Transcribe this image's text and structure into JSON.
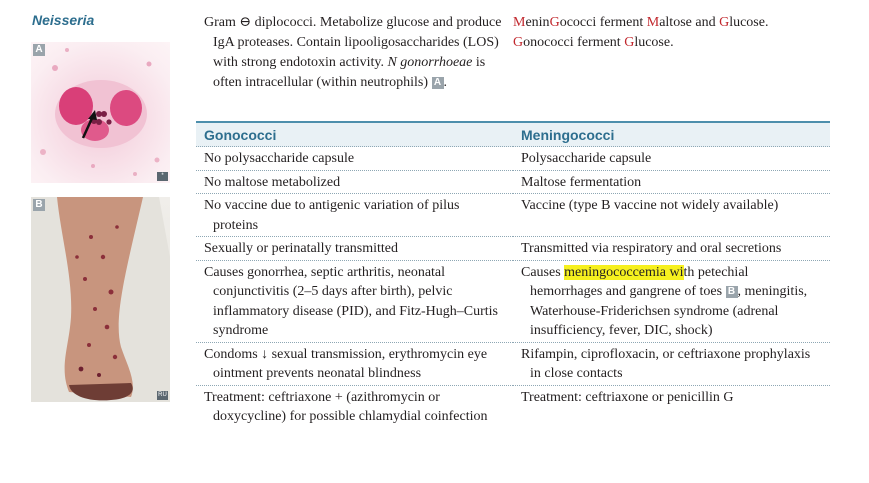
{
  "section_title": "Neisseria",
  "images": [
    {
      "label": "A",
      "corner": "*"
    },
    {
      "label": "B",
      "corner": "RU"
    }
  ],
  "intro": {
    "left_text": "Gram ⊖ diplococci. Metabolize glucose and produce IgA proteases. Contain lipooligosaccharides (LOS) with strong endotoxin activity.",
    "left_italic": "N gonorrhoeae",
    "left_text_2": "is often intracellular (within neutrophils)",
    "left_ref": "A",
    "mnemonic_line1": {
      "p1": "M",
      "p2": "enin",
      "p3": "G",
      "p4": "ococci ferment ",
      "p5": "M",
      "p6": "altose and ",
      "p7": "G",
      "p8": "lucose."
    },
    "mnemonic_line2": {
      "p1": "G",
      "p2": "onococci ferment ",
      "p3": "G",
      "p4": "lucose."
    }
  },
  "table": {
    "headers": [
      "Gonococci",
      "Meningococci"
    ],
    "rows": [
      {
        "left": "No polysaccharide capsule",
        "right": "Polysaccharide capsule"
      },
      {
        "left": "No maltose metabolized",
        "right": "Maltose fermentation"
      },
      {
        "left": "No vaccine due to antigenic variation of pilus proteins",
        "right": "Vaccine (type B vaccine not widely available)"
      },
      {
        "left": "Sexually or perinatally transmitted",
        "right": "Transmitted via respiratory and oral secretions"
      },
      {
        "left": "Causes gonorrhea, septic arthritis, neonatal conjunctivitis (2–5 days after birth), pelvic inflammatory disease (PID), and Fitz-Hugh–Curtis syndrome",
        "right_pre": "Causes ",
        "right_hl": "meningococcemia wi",
        "right_post": "th petechial hemorrhages and gangrene of toes",
        "right_ref": "B",
        "right_post2": ", meningitis, Waterhouse-Friderichsen syndrome (adrenal insufficiency, fever, DIC, shock)"
      },
      {
        "left": "Condoms ↓ sexual transmission, erythromycin eye ointment prevents neonatal blindness",
        "right": "Rifampin, ciprofloxacin, or ceftriaxone prophylaxis in close contacts"
      },
      {
        "left": "Treatment: ceftriaxone + (azithromycin or doxycycline) for possible chlamydial coinfection",
        "right": "Treatment: ceftriaxone or penicillin G"
      }
    ]
  }
}
